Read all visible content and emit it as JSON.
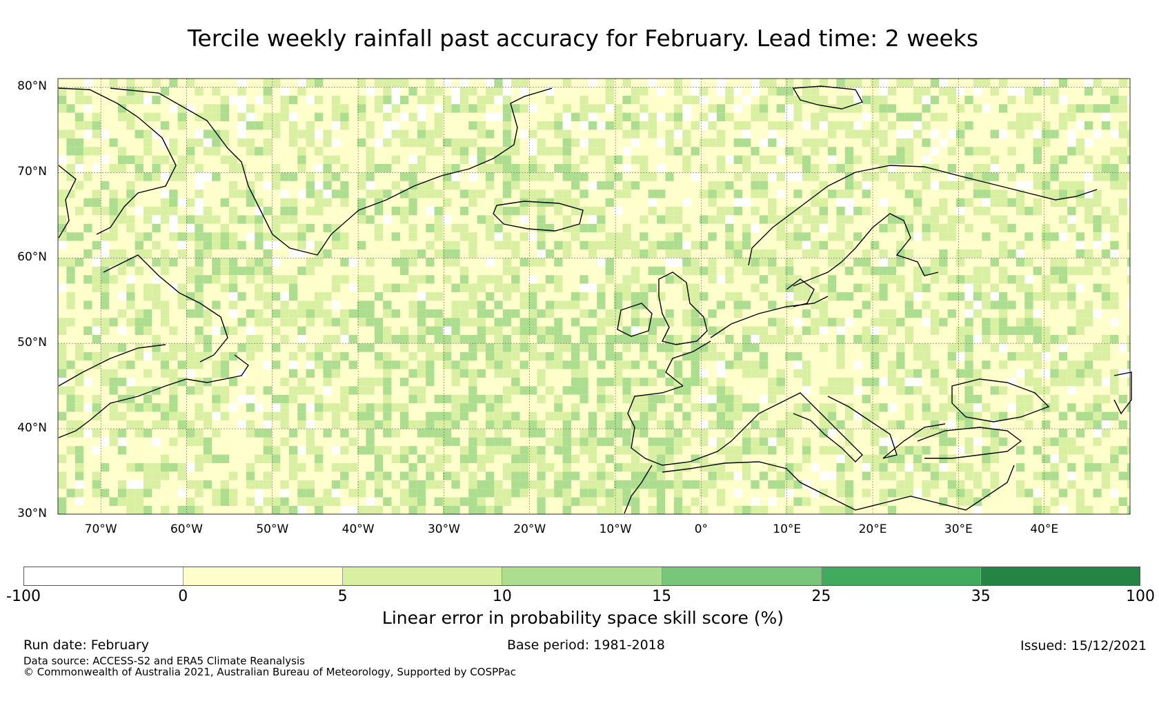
{
  "title": "Tercile weekly rainfall past accuracy for February. Lead time: 2 weeks",
  "map": {
    "lat_labels": [
      "80°N",
      "70°N",
      "60°N",
      "50°N",
      "40°N",
      "30°N"
    ],
    "lon_labels": [
      "70°W",
      "60°W",
      "50°W",
      "40°W",
      "30°W",
      "20°W",
      "10°W",
      "0°",
      "10°E",
      "20°E",
      "30°E",
      "40°E"
    ],
    "lat_range": [
      30,
      81
    ],
    "lon_range": [
      -75,
      50
    ]
  },
  "colorbar": {
    "ticks": [
      "-100",
      "0",
      "5",
      "10",
      "15",
      "25",
      "35",
      "100"
    ],
    "colors": [
      "#ffffff",
      "#ffffcc",
      "#d9f0a3",
      "#addd8e",
      "#78c679",
      "#41ab5d",
      "#238443"
    ],
    "label": "Linear error in probability space skill score (%)"
  },
  "footer": {
    "run_date": "Run date: February",
    "base_period": "Base period: 1981-2018",
    "issued": "Issued: 15/12/2021",
    "data_source": "Data source: ACCESS-S2 and ERA5 Climate Reanalysis",
    "copyright": "© Commonwealth of Australia 2021, Australian Bureau of Meteorology, Supported by COSPPac"
  }
}
